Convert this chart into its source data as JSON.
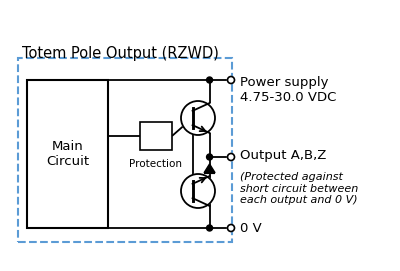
{
  "bg_color": "#ffffff",
  "line_color": "#000000",
  "dashed_box_color": "#5b9bd5",
  "title": "Totem Pole Output (RZWD)",
  "title_fontsize": 10.5,
  "label_power": "Power supply\n4.75-30.0 VDC",
  "label_output": "Output A,B,Z",
  "label_output_italic": "(Protected against\nshort circuit between\neach output and 0 V)",
  "label_0v": "0 V",
  "label_main": "Main\nCircuit",
  "label_protection": "Protection",
  "text_fontsize": 9.5,
  "small_fontsize": 8.0,
  "lw": 1.3
}
